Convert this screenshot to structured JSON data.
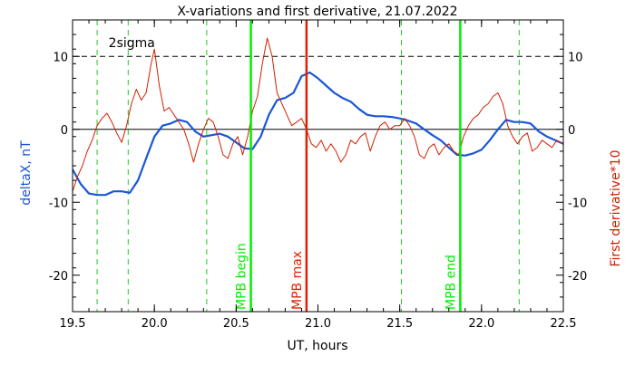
{
  "chart_data": {
    "type": "line",
    "title": "X-variations and first derivative, 21.07.2022",
    "xlabel": "UT, hours",
    "ylabel_left": "deltaX, nT",
    "ylabel_right": "First derivative*10",
    "xlim": [
      19.5,
      22.5
    ],
    "ylim": [
      -25,
      15
    ],
    "x_ticks": [
      {
        "value": 19.5,
        "label": "19.5"
      },
      {
        "value": 20.0,
        "label": "20.0"
      },
      {
        "value": 20.5,
        "label": "20.5"
      },
      {
        "value": 21.0,
        "label": "21.0"
      },
      {
        "value": 21.5,
        "label": "21.5"
      },
      {
        "value": 22.0,
        "label": "22.0"
      },
      {
        "value": 22.5,
        "label": "22.5"
      }
    ],
    "y_ticks_left": [
      {
        "value": 10,
        "label": "10"
      },
      {
        "value": 0,
        "label": "0"
      },
      {
        "value": -10,
        "label": "-10"
      },
      {
        "value": -20,
        "label": "-20"
      }
    ],
    "y_ticks_right": [
      {
        "value": 10,
        "label": "10"
      },
      {
        "value": 0,
        "label": "0"
      },
      {
        "value": -10,
        "label": "-10"
      },
      {
        "value": -20,
        "label": "-20"
      }
    ],
    "sigma_label": "2sigma",
    "sigma_value": 10,
    "zero_line": 0,
    "green_dashed_lines": [
      19.65,
      19.84,
      20.32,
      21.51,
      22.23
    ],
    "event_lines": [
      {
        "x": 20.59,
        "label": "MPB begin",
        "color": "#00ee00"
      },
      {
        "x": 20.93,
        "label": "MPB max",
        "color": "#dd2200"
      },
      {
        "x": 21.87,
        "label": "MPB end",
        "color": "#00ee00"
      }
    ],
    "series": [
      {
        "color": "#1a56d6",
        "x": [
          19.5,
          19.55,
          19.6,
          19.65,
          19.7,
          19.75,
          19.8,
          19.85,
          19.9,
          19.95,
          20.0,
          20.05,
          20.1,
          20.15,
          20.2,
          20.25,
          20.3,
          20.35,
          20.4,
          20.45,
          20.5,
          20.55,
          20.6,
          20.65,
          20.7,
          20.75,
          20.8,
          20.85,
          20.9,
          20.95,
          21.0,
          21.05,
          21.1,
          21.15,
          21.2,
          21.25,
          21.3,
          21.35,
          21.4,
          21.45,
          21.5,
          21.55,
          21.6,
          21.65,
          21.7,
          21.75,
          21.8,
          21.85,
          21.9,
          21.95,
          22.0,
          22.05,
          22.1,
          22.15,
          22.2,
          22.25,
          22.3,
          22.35,
          22.4,
          22.45,
          22.5
        ],
        "values": [
          -5.5,
          -7.5,
          -8.8,
          -9.0,
          -9.0,
          -8.5,
          -8.5,
          -8.7,
          -7.0,
          -4.0,
          -1.0,
          0.5,
          0.8,
          1.3,
          1.0,
          -0.3,
          -1.0,
          -0.8,
          -0.6,
          -1.0,
          -1.8,
          -2.6,
          -2.7,
          -1.0,
          2.0,
          4.0,
          4.3,
          5.0,
          7.3,
          7.8,
          7.0,
          6.0,
          5.0,
          4.3,
          3.8,
          2.8,
          2.0,
          1.8,
          1.8,
          1.7,
          1.5,
          1.2,
          0.8,
          0.0,
          -0.8,
          -1.5,
          -2.5,
          -3.5,
          -3.6,
          -3.3,
          -2.8,
          -1.5,
          0.0,
          1.3,
          1.0,
          1.0,
          0.8,
          -0.3,
          -1.0,
          -1.5,
          -2.0
        ]
      },
      {
        "color": "#cc2200",
        "x": [
          19.5,
          19.53,
          19.56,
          19.59,
          19.62,
          19.65,
          19.68,
          19.71,
          19.74,
          19.77,
          19.8,
          19.83,
          19.86,
          19.89,
          19.92,
          19.95,
          19.98,
          20.0,
          20.03,
          20.06,
          20.09,
          20.12,
          20.15,
          20.18,
          20.21,
          20.24,
          20.27,
          20.3,
          20.33,
          20.36,
          20.39,
          20.42,
          20.45,
          20.48,
          20.51,
          20.54,
          20.57,
          20.6,
          20.63,
          20.66,
          20.69,
          20.72,
          20.75,
          20.78,
          20.81,
          20.84,
          20.87,
          20.9,
          20.93,
          20.96,
          20.99,
          21.02,
          21.05,
          21.08,
          21.11,
          21.14,
          21.17,
          21.2,
          21.23,
          21.26,
          21.29,
          21.32,
          21.35,
          21.38,
          21.41,
          21.44,
          21.47,
          21.5,
          21.53,
          21.56,
          21.59,
          21.62,
          21.65,
          21.68,
          21.71,
          21.74,
          21.77,
          21.8,
          21.83,
          21.86,
          21.89,
          21.92,
          21.95,
          21.98,
          22.01,
          22.04,
          22.07,
          22.1,
          22.13,
          22.16,
          22.19,
          22.22,
          22.25,
          22.28,
          22.31,
          22.34,
          22.37,
          22.4,
          22.43,
          22.46,
          22.5
        ],
        "values": [
          -8.5,
          -6.5,
          -5.0,
          -3.0,
          -1.5,
          0.5,
          1.5,
          2.2,
          1.0,
          -0.5,
          -1.8,
          0.5,
          3.5,
          5.5,
          4.0,
          5.0,
          9.0,
          11.0,
          6.0,
          2.5,
          3.0,
          2.0,
          1.0,
          0.0,
          -2.0,
          -4.5,
          -2.0,
          0.0,
          1.5,
          1.0,
          -1.0,
          -3.5,
          -4.0,
          -2.0,
          -1.0,
          -3.5,
          -1.0,
          2.5,
          4.5,
          9.0,
          12.5,
          10.0,
          5.0,
          3.5,
          2.0,
          0.5,
          1.0,
          1.5,
          0.0,
          -2.0,
          -2.5,
          -1.5,
          -3.0,
          -2.0,
          -3.0,
          -4.5,
          -3.5,
          -1.5,
          -2.0,
          -1.0,
          -0.5,
          -3.0,
          -1.0,
          0.5,
          1.0,
          0.0,
          0.5,
          0.5,
          1.5,
          0.5,
          -1.0,
          -3.5,
          -4.0,
          -2.5,
          -2.0,
          -3.5,
          -2.5,
          -2.0,
          -3.0,
          -3.5,
          -1.0,
          0.5,
          1.5,
          2.0,
          3.0,
          3.5,
          4.5,
          5.0,
          3.5,
          0.5,
          -1.0,
          -2.0,
          -1.0,
          -0.5,
          -3.0,
          -2.5,
          -1.5,
          -2.0,
          -2.5,
          -1.5,
          -2.0
        ]
      }
    ]
  }
}
